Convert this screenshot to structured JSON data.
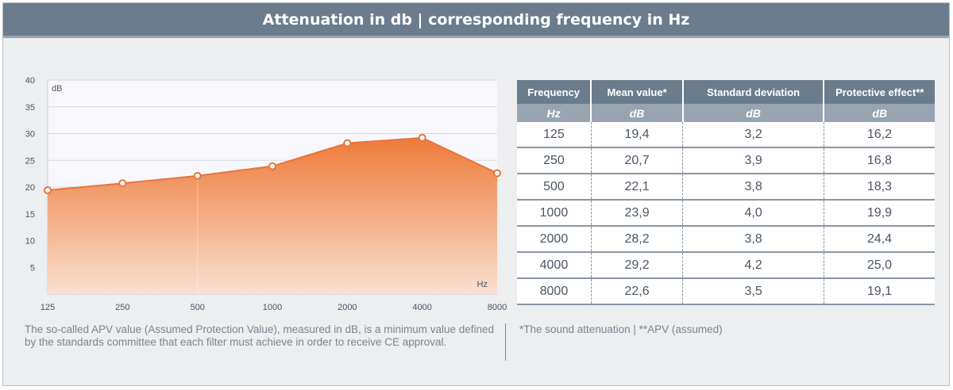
{
  "header": {
    "title": "Attenuation in db | corresponding frequency in Hz"
  },
  "chart_data": {
    "type": "area",
    "categories": [
      "125",
      "250",
      "500",
      "1000",
      "2000",
      "4000",
      "8000"
    ],
    "values": [
      19.4,
      20.7,
      22.1,
      23.9,
      28.2,
      29.2,
      22.6
    ],
    "yticks": [
      5,
      10,
      15,
      20,
      25,
      30,
      35,
      40
    ],
    "ylim": [
      0,
      40
    ],
    "ylabel": "dB",
    "xlabel": "Hz",
    "grid": "horizontal",
    "colors": {
      "fill_top": "#ee7a3a",
      "fill_bottom": "#f9e0d0",
      "line": "#e8743a",
      "marker_fill": "#ffffff"
    }
  },
  "table": {
    "headers": [
      "Frequency",
      "Mean value*",
      "Standard deviation",
      "Protective effect**"
    ],
    "units": [
      "Hz",
      "dB",
      "dB",
      "dB"
    ],
    "rows": [
      [
        "125",
        "19,4",
        "3,2",
        "16,2"
      ],
      [
        "250",
        "20,7",
        "3,9",
        "16,8"
      ],
      [
        "500",
        "22,1",
        "3,8",
        "18,3"
      ],
      [
        "1000",
        "23,9",
        "4,0",
        "19,9"
      ],
      [
        "2000",
        "28,2",
        "3,8",
        "24,4"
      ],
      [
        "4000",
        "29,2",
        "4,2",
        "25,0"
      ],
      [
        "8000",
        "22,6",
        "3,5",
        "19,1"
      ]
    ]
  },
  "notes": {
    "apv": "The so-called APV value (Assumed Protection Value), measured in dB, is a minimum value defined by the standards committee that each filter must achieve in order to receive CE approval.",
    "footnote": "*The sound attenuation | **APV (assumed)"
  },
  "colors": {
    "header_bg": "#6b7d8d",
    "subheader_bg": "#98a5b1",
    "panel_bg": "#eceef0"
  }
}
